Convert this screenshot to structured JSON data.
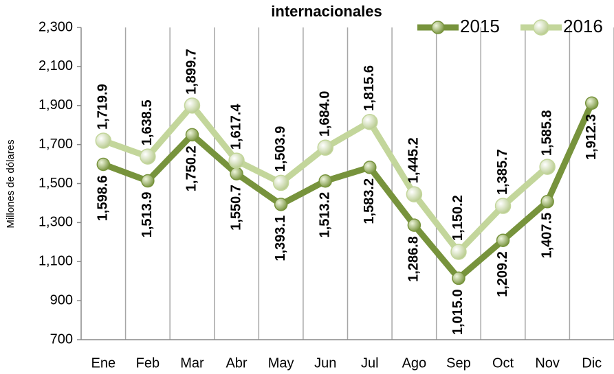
{
  "chart_data": {
    "type": "line",
    "title": "internacionales",
    "y_label": "Millones de dólares",
    "categories": [
      "Ene",
      "Feb",
      "Mar",
      "Abr",
      "May",
      "Jun",
      "Jul",
      "Ago",
      "Sep",
      "Oct",
      "Nov",
      "Dic"
    ],
    "series": [
      {
        "name": "2015",
        "color": "#77933c",
        "values": [
          1598.6,
          1513.9,
          1750.2,
          1550.7,
          1393.1,
          1513.2,
          1583.2,
          1286.8,
          1015.0,
          1209.2,
          1407.5,
          1912.3
        ],
        "value_labels": [
          "1,598.6",
          "1,513.9",
          "1,750.2",
          "1,550.7",
          "1,393.1",
          "1,513.2",
          "1,583.2",
          "1,286.8",
          "1,015.0",
          "1,209.2",
          "1,407.5",
          "1,912.3"
        ]
      },
      {
        "name": "2016",
        "color": "#c3d69b",
        "values": [
          1719.9,
          1638.5,
          1899.7,
          1617.4,
          1503.9,
          1684.0,
          1815.6,
          1445.2,
          1150.2,
          1385.7,
          1585.8,
          null
        ],
        "value_labels": [
          "1,719.9",
          "1,638.5",
          "1,899.7",
          "1,617.4",
          "1,503.9",
          "1,684.0",
          "1,815.6",
          "1,445.2",
          "1,150.2",
          "1,385.7",
          "1,585.8",
          null
        ]
      }
    ],
    "ylim": [
      700,
      2300
    ],
    "yticks": [
      {
        "value": 700,
        "label": "700"
      },
      {
        "value": 900,
        "label": "900"
      },
      {
        "value": 1100,
        "label": "1,100"
      },
      {
        "value": 1300,
        "label": "1,300"
      },
      {
        "value": 1500,
        "label": "1,500"
      },
      {
        "value": 1700,
        "label": "1,700"
      },
      {
        "value": 1900,
        "label": "1,900"
      },
      {
        "value": 2100,
        "label": "2,100"
      },
      {
        "value": 2300,
        "label": "2,300"
      }
    ],
    "legend": "top-right"
  }
}
